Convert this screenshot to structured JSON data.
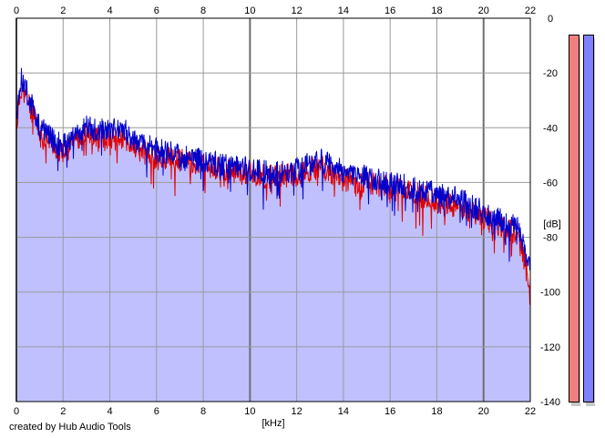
{
  "chart_data": {
    "type": "area",
    "title": "",
    "xlabel": "[kHz]",
    "ylabel": "[dB]",
    "xlim": [
      0,
      22
    ],
    "ylim": [
      -140,
      0
    ],
    "x_ticks": [
      0,
      2,
      4,
      6,
      8,
      10,
      12,
      14,
      16,
      18,
      20,
      22
    ],
    "y_ticks": [
      0,
      -20,
      -40,
      -60,
      -80,
      -100,
      -120,
      -140
    ],
    "grid": true,
    "fill_color": "#c0c0ff",
    "series": [
      {
        "color": "#e00000",
        "x": [
          0,
          0.2,
          0.5,
          1,
          1.5,
          2,
          2.5,
          3,
          3.5,
          4,
          4.5,
          5,
          6,
          7,
          8,
          9,
          10,
          11,
          12,
          13,
          14,
          15,
          16,
          17,
          18,
          19,
          20,
          21,
          21.5,
          22
        ],
        "y": [
          -40,
          -25,
          -30,
          -43,
          -45,
          -50,
          -44,
          -42,
          -43,
          -44,
          -44,
          -47,
          -51,
          -52,
          -53,
          -56,
          -57,
          -58,
          -57,
          -54,
          -59,
          -60,
          -62,
          -64,
          -67,
          -69,
          -73,
          -77,
          -80,
          -98
        ]
      },
      {
        "color": "#0000cc",
        "x": [
          0,
          0.2,
          0.5,
          1,
          1.5,
          2,
          2.5,
          3,
          3.5,
          4,
          4.5,
          5,
          6,
          7,
          8,
          9,
          10,
          11,
          12,
          13,
          14,
          15,
          16,
          17,
          18,
          19,
          20,
          21,
          21.5,
          22
        ],
        "y": [
          -35,
          -22,
          -28,
          -40,
          -44,
          -47,
          -42,
          -40,
          -41,
          -41,
          -40,
          -44,
          -48,
          -50,
          -52,
          -54,
          -55,
          -57,
          -55,
          -52,
          -56,
          -58,
          -60,
          -62,
          -64,
          -66,
          -71,
          -75,
          -77,
          -92
        ]
      }
    ]
  },
  "meters": [
    {
      "color": "#f08080",
      "level": 0.0
    },
    {
      "color": "#8080ff",
      "level": 0.0
    }
  ],
  "credit": "created by Hub Audio Tools"
}
